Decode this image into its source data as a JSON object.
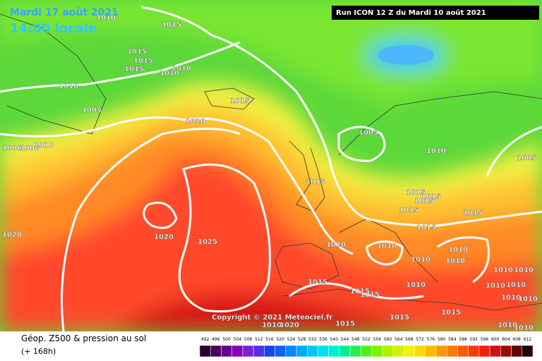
{
  "header": {
    "title": "Mardi 17 août 2021",
    "time": "14:00 locale",
    "run": "Run ICON 12 Z du Mardi 10 août 2021"
  },
  "copyright": "Copyright © 2021 Meteociel.fr",
  "legend": {
    "title": "Géop. Z500 & pression au sol",
    "lead": "(+ 168h)",
    "scale": {
      "values": [
        492,
        496,
        500,
        504,
        508,
        512,
        516,
        520,
        524,
        528,
        532,
        536,
        540,
        544,
        548,
        552,
        556,
        560,
        564,
        568,
        572,
        576,
        580,
        584,
        588,
        592,
        596,
        600,
        604,
        608,
        612
      ],
      "colors": [
        "#2a0030",
        "#4a0060",
        "#6a0090",
        "#8a00b8",
        "#7a20d8",
        "#5030e8",
        "#2040f0",
        "#1060f8",
        "#0088ff",
        "#00a8ff",
        "#00c8ff",
        "#00e0f0",
        "#00f0c8",
        "#00f090",
        "#20f050",
        "#50f020",
        "#80f000",
        "#b0f000",
        "#d8f000",
        "#f8f000",
        "#ffd800",
        "#ffb800",
        "#ff9800",
        "#ff7800",
        "#ff5800",
        "#ff3800",
        "#f02010",
        "#d01010",
        "#a00808",
        "#600404",
        "#200000"
      ]
    }
  },
  "isobar_labels": [
    1010,
    1015,
    1015,
    1015,
    1015,
    1010,
    1010,
    1010,
    1015,
    1005,
    1020,
    1000,
    1000,
    1010,
    1005,
    1010,
    1005,
    1015,
    1015,
    1015,
    1015,
    1015,
    1015,
    1015,
    1020,
    1020,
    1025,
    1020,
    1010,
    1010,
    1010,
    1010,
    1015,
    1010,
    1015,
    1015,
    1010,
    1010,
    1010,
    1010,
    1010,
    1010,
    1015,
    1015,
    1010,
    1020,
    1015,
    1010,
    1010
  ]
}
